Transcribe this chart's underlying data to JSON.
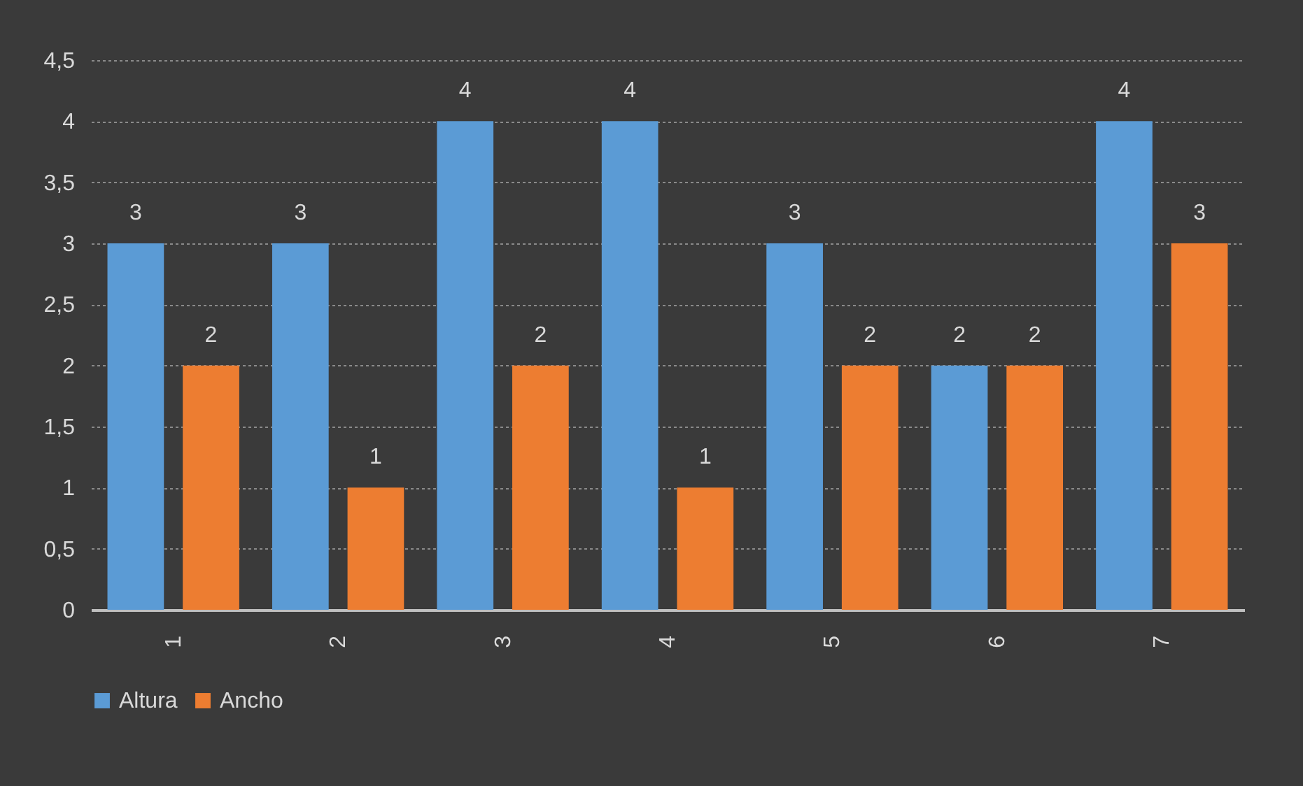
{
  "chart_data": {
    "type": "bar",
    "categories": [
      "1",
      "2",
      "3",
      "4",
      "5",
      "6",
      "7"
    ],
    "series": [
      {
        "name": "Altura",
        "color": "#5b9bd5",
        "values": [
          3,
          3,
          4,
          4,
          3,
          2,
          4
        ]
      },
      {
        "name": "Ancho",
        "color": "#ed7d31",
        "values": [
          2,
          1,
          2,
          1,
          2,
          2,
          3
        ]
      }
    ],
    "ylim": [
      0,
      4.5
    ],
    "yticks": [
      0,
      {
        "value": 0.5,
        "label": "0,5"
      },
      1,
      {
        "value": 1.5,
        "label": "1,5"
      },
      2,
      {
        "value": 2.5,
        "label": "2,5"
      },
      3,
      {
        "value": 3.5,
        "label": "3,5"
      },
      4,
      {
        "value": 4.5,
        "label": "4,5"
      }
    ],
    "grid": "y",
    "legend": "bottom",
    "data_labels": true
  }
}
